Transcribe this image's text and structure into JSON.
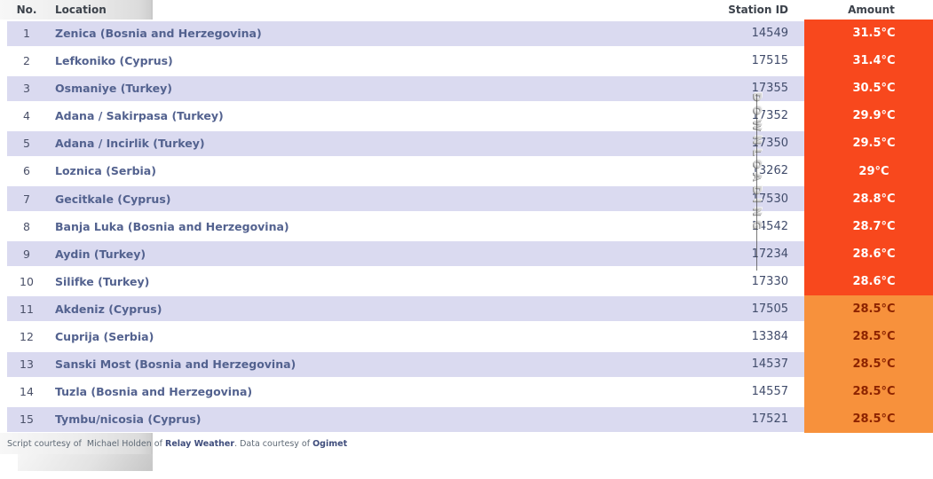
{
  "header": {
    "col_no": "No.",
    "col_location": "Location",
    "col_station": "Station ID",
    "col_amount": "Amount"
  },
  "rows": [
    {
      "no": "1",
      "location": "Zenica (Bosnia and Herzegovina)",
      "station_id": "14549",
      "amount": "31.5°C",
      "band": "red"
    },
    {
      "no": "2",
      "location": "Lefkoniko (Cyprus)",
      "station_id": "17515",
      "amount": "31.4°C",
      "band": "red"
    },
    {
      "no": "3",
      "location": "Osmaniye (Turkey)",
      "station_id": "17355",
      "amount": "30.5°C",
      "band": "red"
    },
    {
      "no": "4",
      "location": "Adana / Sakirpasa (Turkey)",
      "station_id": "17352",
      "amount": "29.9°C",
      "band": "red"
    },
    {
      "no": "5",
      "location": "Adana / Incirlik (Turkey)",
      "station_id": "17350",
      "amount": "29.5°C",
      "band": "red"
    },
    {
      "no": "6",
      "location": "Loznica (Serbia)",
      "station_id": "13262",
      "amount": "29°C",
      "band": "red"
    },
    {
      "no": "7",
      "location": "Gecitkale (Cyprus)",
      "station_id": "17530",
      "amount": "28.8°C",
      "band": "red"
    },
    {
      "no": "8",
      "location": "Banja Luka (Bosnia and Herzegovina)",
      "station_id": "14542",
      "amount": "28.7°C",
      "band": "red"
    },
    {
      "no": "9",
      "location": "Aydin (Turkey)",
      "station_id": "17234",
      "amount": "28.6°C",
      "band": "red"
    },
    {
      "no": "10",
      "location": "Silifke (Turkey)",
      "station_id": "17330",
      "amount": "28.6°C",
      "band": "red"
    },
    {
      "no": "11",
      "location": "Akdeniz (Cyprus)",
      "station_id": "17505",
      "amount": "28.5°C",
      "band": "orange"
    },
    {
      "no": "12",
      "location": "Cuprija (Serbia)",
      "station_id": "13384",
      "amount": "28.5°C",
      "band": "orange"
    },
    {
      "no": "13",
      "location": "Sanski Most (Bosnia and Herzegovina)",
      "station_id": "14537",
      "amount": "28.5°C",
      "band": "orange"
    },
    {
      "no": "14",
      "location": "Tuzla (Bosnia and Herzegovina)",
      "station_id": "14557",
      "amount": "28.5°C",
      "band": "orange"
    },
    {
      "no": "15",
      "location": "Tymbu/nicosia (Cyprus)",
      "station_id": "17521",
      "amount": "28.5°C",
      "band": "orange"
    }
  ],
  "watermark": {
    "text": "DOWNLOADING"
  },
  "footer": {
    "prefix": "Script courtesy of  Michael Holden of ",
    "link_relay": "Relay Weather",
    "middle": ". Data courtesy of ",
    "link_ogimet": "Ogimet"
  },
  "colors": {
    "red_band": "#f8481d",
    "red_text": "#ffffff",
    "orange_band": "#f7913c",
    "orange_text": "#8c2300",
    "row_alt": "#dadaf0",
    "location_text": "#53628f"
  }
}
